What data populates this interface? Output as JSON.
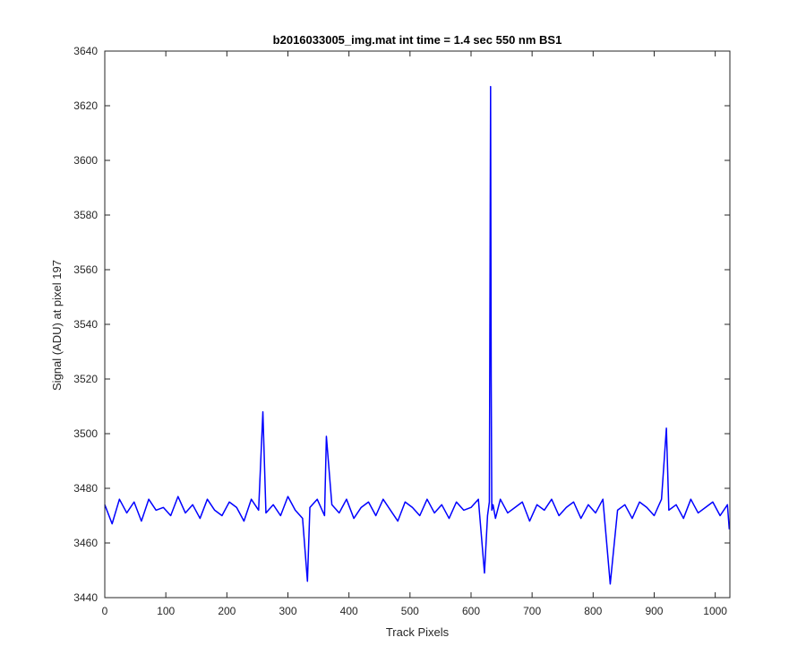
{
  "chart_data": {
    "type": "line",
    "title": "b2016033005_img.mat int time = 1.4 sec  550 nm BS1",
    "xlabel": "Track Pixels",
    "ylabel": "Signal (ADU) at pixel 197",
    "xlim": [
      0,
      1024
    ],
    "ylim": [
      3440,
      3640
    ],
    "x_ticks": [
      0,
      100,
      200,
      300,
      400,
      500,
      600,
      700,
      800,
      900,
      1000
    ],
    "y_ticks": [
      3440,
      3460,
      3480,
      3500,
      3520,
      3540,
      3560,
      3580,
      3600,
      3620,
      3640
    ],
    "grid": false,
    "series_color": "#0000ff",
    "series": [
      {
        "x": [
          0,
          12,
          24,
          36,
          48,
          60,
          72,
          84,
          96,
          108,
          120,
          132,
          144,
          156,
          168,
          180,
          192,
          204,
          216,
          228,
          240,
          252,
          259,
          264,
          276,
          288,
          300,
          312,
          324,
          332,
          336,
          348,
          360,
          363,
          372,
          384,
          396,
          408,
          420,
          432,
          444,
          456,
          468,
          480,
          492,
          504,
          516,
          528,
          540,
          552,
          564,
          576,
          588,
          600,
          612,
          622,
          627,
          630,
          632,
          633,
          634,
          636,
          640,
          648,
          660,
          672,
          684,
          696,
          708,
          720,
          732,
          744,
          756,
          768,
          780,
          792,
          804,
          816,
          828,
          840,
          852,
          864,
          876,
          888,
          900,
          912,
          920,
          924,
          936,
          948,
          960,
          972,
          984,
          996,
          1008,
          1020,
          1023
        ],
        "values": [
          3474,
          3467,
          3476,
          3471,
          3475,
          3468,
          3476,
          3472,
          3473,
          3470,
          3477,
          3471,
          3474,
          3469,
          3476,
          3472,
          3470,
          3475,
          3473,
          3468,
          3476,
          3472,
          3508,
          3471,
          3474,
          3470,
          3477,
          3472,
          3469,
          3446,
          3473,
          3476,
          3470,
          3499,
          3474,
          3471,
          3476,
          3469,
          3473,
          3475,
          3470,
          3476,
          3472,
          3468,
          3475,
          3473,
          3470,
          3476,
          3471,
          3474,
          3469,
          3475,
          3472,
          3473,
          3476,
          3449,
          3470,
          3475,
          3627,
          3520,
          3472,
          3474,
          3469,
          3476,
          3471,
          3473,
          3475,
          3468,
          3474,
          3472,
          3476,
          3470,
          3473,
          3475,
          3469,
          3474,
          3471,
          3476,
          3445,
          3472,
          3474,
          3469,
          3475,
          3473,
          3470,
          3476,
          3502,
          3472,
          3474,
          3469,
          3476,
          3471,
          3473,
          3475,
          3470,
          3474,
          3465
        ]
      }
    ]
  }
}
